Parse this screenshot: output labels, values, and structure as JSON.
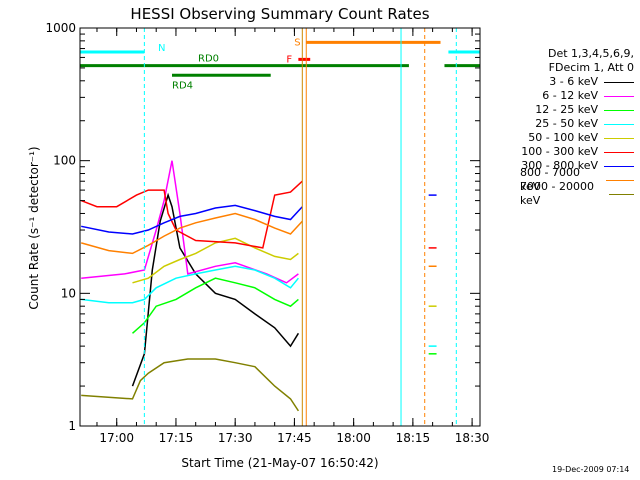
{
  "chart_data": {
    "type": "line",
    "title": "HESSI Observing Summary Count Rates",
    "xlabel": "Start Time (21-May-07 16:50:42)",
    "ylabel": "Count Rate (s⁻¹ detector⁻¹)",
    "y_scale": "log",
    "ylim": [
      1,
      1000
    ],
    "xlim": [
      "16:50:42",
      "18:32"
    ],
    "x_ticks": [
      "17:00",
      "17:15",
      "17:30",
      "17:45",
      "18:00",
      "18:15",
      "18:30"
    ],
    "y_ticks": [
      {
        "value": 1,
        "label": "1"
      },
      {
        "value": 10,
        "label": "10"
      },
      {
        "value": 100,
        "label": "100"
      },
      {
        "value": 1000,
        "label": "1000"
      }
    ],
    "legend_header": [
      "Det 1,3,4,5,6,9,",
      "FDecim 1, Att 0"
    ],
    "series": [
      {
        "name": "3 - 6 keV",
        "color": "#000000",
        "points": [
          [
            "17:04",
            2
          ],
          [
            "17:07",
            3.5
          ],
          [
            "17:09",
            15
          ],
          [
            "17:11",
            35
          ],
          [
            "17:13",
            55
          ],
          [
            "17:14",
            45
          ],
          [
            "17:16",
            22
          ],
          [
            "17:20",
            14
          ],
          [
            "17:25",
            10
          ],
          [
            "17:30",
            9
          ],
          [
            "17:35",
            7
          ],
          [
            "17:40",
            5.5
          ],
          [
            "17:44",
            4
          ],
          [
            "17:46",
            5
          ]
        ],
        "segments": [
          [
            "18:19",
            null
          ],
          [
            "18:21",
            null
          ]
        ]
      },
      {
        "name": "6 - 12 keV",
        "color": "#ff00ff",
        "points": [
          [
            "16:51",
            13
          ],
          [
            "17:02",
            14
          ],
          [
            "17:07",
            15
          ],
          [
            "17:10",
            30
          ],
          [
            "17:12",
            50
          ],
          [
            "17:14",
            100
          ],
          [
            "17:16",
            40
          ],
          [
            "17:18",
            14
          ],
          [
            "17:25",
            16
          ],
          [
            "17:30",
            17
          ],
          [
            "17:38",
            14
          ],
          [
            "17:43",
            12
          ],
          [
            "17:46",
            14
          ]
        ],
        "segments": [
          [
            "18:19",
            null
          ],
          [
            "18:21",
            null
          ]
        ]
      },
      {
        "name": "12 - 25 keV",
        "color": "#00ff00",
        "points": [
          [
            "17:04",
            5
          ],
          [
            "17:07",
            6
          ],
          [
            "17:10",
            8
          ],
          [
            "17:15",
            9
          ],
          [
            "17:20",
            11
          ],
          [
            "17:25",
            13
          ],
          [
            "17:30",
            12
          ],
          [
            "17:35",
            11
          ],
          [
            "17:40",
            9
          ],
          [
            "17:44",
            8
          ],
          [
            "17:46",
            9
          ]
        ],
        "segments": [
          [
            "18:19",
            null
          ],
          [
            "18:21",
            null
          ]
        ]
      },
      {
        "name": "25 - 50 keV",
        "color": "#00ffff",
        "points": [
          [
            "16:51",
            9
          ],
          [
            "16:58",
            8.5
          ],
          [
            "17:04",
            8.5
          ],
          [
            "17:07",
            9
          ],
          [
            "17:10",
            11
          ],
          [
            "17:15",
            13
          ],
          [
            "17:20",
            14
          ],
          [
            "17:25",
            15
          ],
          [
            "17:30",
            16
          ],
          [
            "17:35",
            15
          ],
          [
            "17:40",
            13
          ],
          [
            "17:44",
            11
          ],
          [
            "17:46",
            13
          ]
        ],
        "segments": [
          [
            "18:19",
            null
          ],
          [
            "18:21",
            null
          ]
        ]
      },
      {
        "name": "50 - 100 keV",
        "color": "#cccc00",
        "points": [
          [
            "17:04",
            12
          ],
          [
            "17:08",
            13
          ],
          [
            "17:12",
            16
          ],
          [
            "17:16",
            18
          ],
          [
            "17:20",
            20
          ],
          [
            "17:25",
            24
          ],
          [
            "17:30",
            26
          ],
          [
            "17:35",
            22
          ],
          [
            "17:40",
            19
          ],
          [
            "17:44",
            18
          ],
          [
            "17:46",
            20
          ]
        ],
        "segments": [
          [
            "18:19",
            null
          ],
          [
            "18:21",
            null
          ]
        ]
      },
      {
        "name": "100 - 300 keV",
        "color": "#ff0000",
        "points": [
          [
            "16:51",
            50
          ],
          [
            "16:55",
            45
          ],
          [
            "17:00",
            45
          ],
          [
            "17:05",
            55
          ],
          [
            "17:08",
            60
          ],
          [
            "17:12",
            60
          ],
          [
            "17:13",
            40
          ],
          [
            "17:15",
            30
          ],
          [
            "17:20",
            25
          ],
          [
            "17:30",
            24
          ],
          [
            "17:37",
            22
          ],
          [
            "17:40",
            55
          ],
          [
            "17:44",
            58
          ],
          [
            "17:47",
            70
          ]
        ],
        "segments": [
          [
            "18:19",
            null
          ],
          [
            "18:21",
            null
          ]
        ]
      },
      {
        "name": "300 - 800 keV",
        "color": "#0000ff",
        "points": [
          [
            "16:51",
            32
          ],
          [
            "16:58",
            29
          ],
          [
            "17:04",
            28
          ],
          [
            "17:08",
            30
          ],
          [
            "17:12",
            34
          ],
          [
            "17:16",
            38
          ],
          [
            "17:20",
            40
          ],
          [
            "17:25",
            44
          ],
          [
            "17:30",
            46
          ],
          [
            "17:35",
            42
          ],
          [
            "17:40",
            38
          ],
          [
            "17:44",
            36
          ],
          [
            "17:47",
            45
          ]
        ],
        "segments": [
          [
            "18:19",
            null
          ],
          [
            "18:21",
            null
          ]
        ]
      },
      {
        "name": "800 - 7000 keV",
        "color": "#ff8000",
        "points": [
          [
            "16:51",
            24
          ],
          [
            "16:58",
            21
          ],
          [
            "17:04",
            20
          ],
          [
            "17:08",
            23
          ],
          [
            "17:12",
            27
          ],
          [
            "17:16",
            31
          ],
          [
            "17:20",
            34
          ],
          [
            "17:25",
            37
          ],
          [
            "17:30",
            40
          ],
          [
            "17:35",
            36
          ],
          [
            "17:40",
            31
          ],
          [
            "17:44",
            28
          ],
          [
            "17:47",
            35
          ]
        ],
        "segments": [
          [
            "18:19",
            null
          ],
          [
            "18:21",
            null
          ]
        ]
      },
      {
        "name": "7000 - 20000 keV",
        "color": "#808000",
        "points": [
          [
            "16:51",
            1.7
          ],
          [
            "17:04",
            1.6
          ],
          [
            "17:06",
            2.2
          ],
          [
            "17:08",
            2.5
          ],
          [
            "17:12",
            3
          ],
          [
            "17:18",
            3.2
          ],
          [
            "17:25",
            3.2
          ],
          [
            "17:30",
            3
          ],
          [
            "17:35",
            2.8
          ],
          [
            "17:40",
            2
          ],
          [
            "17:44",
            1.6
          ],
          [
            "17:46",
            1.3
          ]
        ],
        "segments": [
          [
            "18:19",
            null
          ],
          [
            "18:21",
            null
          ]
        ]
      }
    ],
    "late_fragment": {
      "x_range": [
        "18:19",
        "18:21"
      ],
      "values": {
        "300 - 800 keV": 55,
        "100 - 300 keV": 22,
        "800 - 7000 keV": 16,
        "50 - 100 keV": 8,
        "25 - 50 keV": 4,
        "12 - 25 keV": 3.5
      }
    },
    "flag_bars": [
      {
        "label": "N",
        "color": "#00ffff",
        "y_level": 660,
        "ranges": [
          [
            "16:50:42",
            "17:07"
          ],
          [
            "18:24",
            "18:32"
          ]
        ]
      },
      {
        "label": "RD0",
        "color": "#008000",
        "y_level": 520,
        "ranges": [
          [
            "16:50:42",
            "18:14"
          ],
          [
            "18:23",
            "18:32"
          ]
        ]
      },
      {
        "label": "RD4",
        "color": "#008000",
        "y_level": 440,
        "ranges": [
          [
            "17:14",
            "17:39"
          ]
        ]
      },
      {
        "label": "S",
        "color": "#ff8000",
        "y_level": 780,
        "ranges": [
          [
            "17:48",
            "18:22"
          ]
        ]
      },
      {
        "label": "F",
        "color": "#ff0000",
        "y_level": 580,
        "ranges": [
          [
            "17:46",
            "17:49"
          ]
        ]
      }
    ],
    "vertical_markers": [
      {
        "time": "17:07",
        "color": "#00ffff",
        "style": "dashed"
      },
      {
        "time": "17:47",
        "color": "#cc8800",
        "style": "solid"
      },
      {
        "time": "17:48",
        "color": "#ff8000",
        "style": "solid"
      },
      {
        "time": "18:12",
        "color": "#00ffff",
        "style": "solid"
      },
      {
        "time": "18:18",
        "color": "#ff8000",
        "style": "dashed"
      },
      {
        "time": "18:26",
        "color": "#00ffff",
        "style": "dashed"
      }
    ],
    "footer": "19-Dec-2009 07:14"
  }
}
